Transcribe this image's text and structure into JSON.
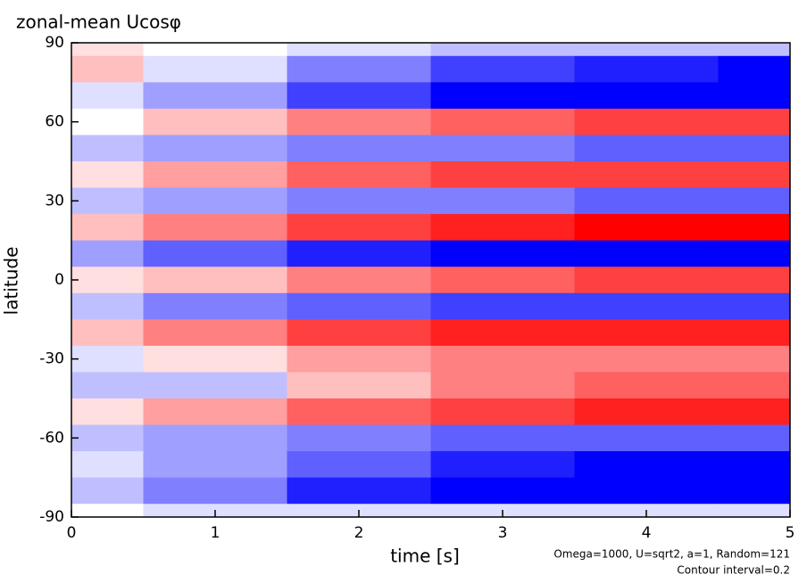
{
  "chart_data": {
    "type": "contour",
    "title": "zonal-mean Ucosφ",
    "x_label": "time [s]",
    "y_label": "latitude",
    "annotations": [
      "Omega=1000, U=sqrt2, a=1, Random=121",
      "Contour interval=0.2"
    ],
    "xlim": [
      0,
      5
    ],
    "ylim": [
      -90,
      90
    ],
    "xticks": [
      0,
      1,
      2,
      3,
      4,
      5
    ],
    "yticks": [
      -90,
      -60,
      -30,
      0,
      30,
      60,
      90
    ],
    "zlim": [
      -1.6,
      1.6
    ],
    "colors": {
      "negative": "#0000ff",
      "positive": "#ff0000",
      "neutral": "#ffffff"
    },
    "x": [
      0,
      1,
      2,
      3,
      4,
      5
    ],
    "y": [
      90,
      80,
      70,
      60,
      50,
      40,
      30,
      20,
      10,
      0,
      -10,
      -20,
      -30,
      -40,
      -50,
      -60,
      -70,
      -80,
      -90
    ],
    "z": [
      [
        0.2,
        0,
        -0.2,
        -0.4,
        -0.4,
        -0.4
      ],
      [
        0.4,
        -0.2,
        -0.8,
        -1.2,
        -1.4,
        -1.6
      ],
      [
        -0.2,
        -0.6,
        -1.2,
        -1.6,
        -1.6,
        -1.6
      ],
      [
        0,
        0.4,
        0.8,
        1.0,
        1.2,
        1.2
      ],
      [
        -0.4,
        -0.6,
        -0.8,
        -0.8,
        -1.0,
        -1.0
      ],
      [
        0.2,
        0.6,
        1.0,
        1.2,
        1.2,
        1.2
      ],
      [
        -0.4,
        -0.6,
        -0.8,
        -0.8,
        -1.0,
        -1.0
      ],
      [
        0.4,
        0.8,
        1.2,
        1.4,
        1.6,
        1.6
      ],
      [
        -0.6,
        -1.0,
        -1.4,
        -1.6,
        -1.6,
        -1.6
      ],
      [
        0.2,
        0.4,
        0.8,
        1.0,
        1.2,
        1.2
      ],
      [
        -0.4,
        -0.8,
        -1.0,
        -1.2,
        -1.2,
        -1.2
      ],
      [
        0.4,
        0.8,
        1.2,
        1.4,
        1.4,
        1.4
      ],
      [
        -0.2,
        0.2,
        0.6,
        0.8,
        0.8,
        0.8
      ],
      [
        -0.4,
        -0.4,
        0.4,
        0.8,
        1.0,
        1.0
      ],
      [
        0.2,
        0.6,
        1.0,
        1.2,
        1.4,
        1.4
      ],
      [
        -0.4,
        -0.6,
        -0.8,
        -1.0,
        -1.0,
        -1.0
      ],
      [
        -0.2,
        -0.6,
        -1.0,
        -1.4,
        -1.6,
        -1.6
      ],
      [
        -0.4,
        -0.8,
        -1.4,
        -1.6,
        -1.6,
        -1.6
      ],
      [
        0,
        -0.2,
        -0.2,
        -0.2,
        -0.2,
        -0.2
      ]
    ]
  }
}
